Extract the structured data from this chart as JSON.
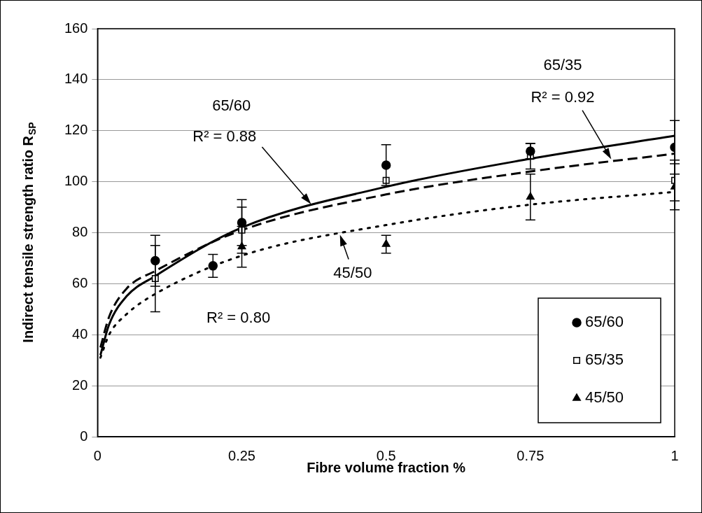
{
  "chart_data": {
    "type": "scatter",
    "xlabel": "Fibre volume fraction %",
    "ylabel": "Indirect tensile strength ratio R$_{SP}$",
    "xlim": [
      0,
      1
    ],
    "xticks": [
      0,
      0.25,
      0.5,
      0.75,
      1
    ],
    "ylim": [
      0,
      160
    ],
    "yticks": [
      0,
      20,
      40,
      60,
      80,
      100,
      120,
      140,
      160
    ],
    "grid": "y",
    "legend": "bottom right",
    "series": [
      {
        "name": "65/60",
        "marker": "circle",
        "color": "#000000",
        "x": [
          0.1,
          0.2,
          0.25,
          0.5,
          0.75,
          1
        ],
        "values": [
          69,
          67,
          84,
          106.5,
          112,
          113.5
        ],
        "errors": [
          10,
          4.5,
          9,
          8,
          3,
          10.5
        ]
      },
      {
        "name": "65/35",
        "marker": "square",
        "color": "#000000",
        "x": [
          0.1,
          0.25,
          0.5,
          0.75,
          1
        ],
        "values": [
          62,
          81,
          100.5,
          110,
          100.5
        ],
        "errors": [
          13,
          9,
          null,
          5,
          8
        ]
      },
      {
        "name": "45/50",
        "marker": "triangle",
        "color": "#000000",
        "x": [
          0.25,
          0.5,
          0.75,
          1
        ],
        "values": [
          74.5,
          75.5,
          94,
          98
        ],
        "errors": [
          8,
          3.5,
          9,
          9
        ]
      },
      {
        "type": "line",
        "marker": "none",
        "line_style": "solid",
        "color": "#000000",
        "x": [
          0.005,
          0.02,
          0.05,
          0.1,
          0.25,
          0.5,
          0.75,
          1
        ],
        "values": [
          32,
          44,
          55,
          63,
          82,
          98,
          109,
          118
        ]
      },
      {
        "type": "line",
        "marker": "none",
        "line_style": "dashed",
        "color": "#000000",
        "x": [
          0.005,
          0.02,
          0.05,
          0.1,
          0.25,
          0.5,
          0.75,
          1
        ],
        "values": [
          35,
          47,
          58,
          65,
          81,
          95,
          104,
          111
        ]
      },
      {
        "type": "line",
        "marker": "none",
        "line_style": "dotted",
        "color": "#000000",
        "x": [
          0.005,
          0.02,
          0.05,
          0.1,
          0.25,
          0.5,
          0.75,
          1
        ],
        "values": [
          31,
          40,
          48,
          56,
          71,
          83,
          91,
          96
        ]
      }
    ],
    "annotations": [
      "65/60",
      "R² = 0.88",
      "65/35",
      "R² = 0.92",
      "45/50",
      "R² = 0.80"
    ]
  }
}
